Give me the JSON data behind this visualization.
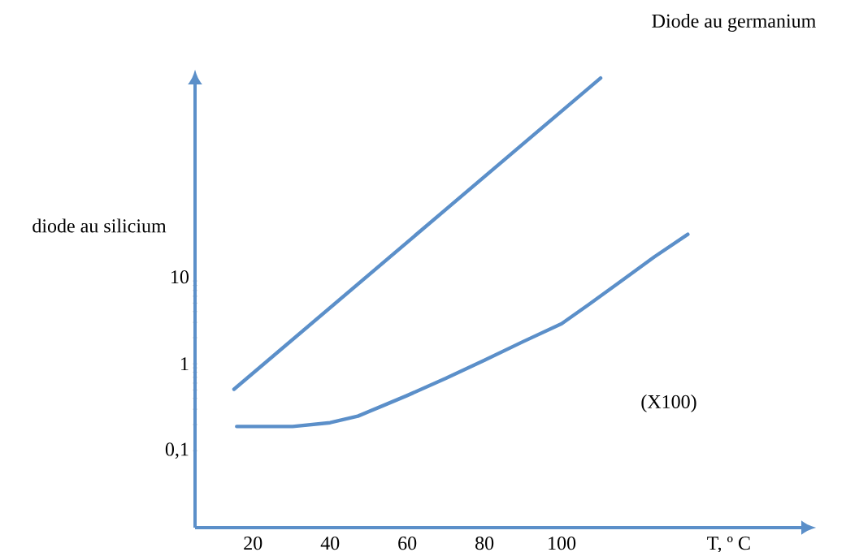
{
  "chart_data": {
    "type": "line",
    "xlabel": "T, º C",
    "log": "y",
    "annotations": [
      "Diode au germanium",
      "diode au silicium",
      "(X100)"
    ],
    "xlim": [
      5,
      164
    ],
    "ylim": [
      0.013,
      2000
    ],
    "xticks": [
      20,
      40,
      60,
      80,
      100
    ],
    "yticks": [
      {
        "value": 0.1,
        "label": "0,1"
      },
      1,
      10
    ],
    "series": [
      {
        "color": "#5b8fc9",
        "x": [
          15.1,
          110.1
        ],
        "values": [
          0.51,
          1950
        ]
      },
      {
        "color": "#5b8fc9",
        "x": [
          15.8,
          30.3,
          40,
          47.2,
          53,
          59.9,
          70,
          80,
          90,
          100,
          107,
          114.7,
          124,
          132.7
        ],
        "values": [
          0.19,
          0.19,
          0.21,
          0.25,
          0.32,
          0.43,
          0.68,
          1.1,
          1.8,
          2.9,
          4.8,
          8.5,
          17,
          31
        ]
      }
    ]
  }
}
